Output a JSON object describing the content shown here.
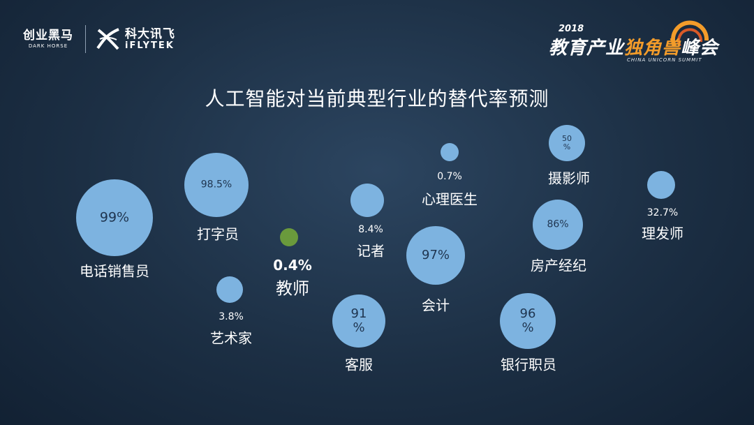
{
  "header": {
    "logo_left_cn": "创业黑马",
    "logo_left_en": "DARK HORSE",
    "logo_mid_cn": "科大讯飞",
    "logo_mid_en": "iFLYTEK",
    "logo_right_year": "2018",
    "logo_right_main_a": "教育产业",
    "logo_right_main_b": "独角兽",
    "logo_right_main_c": "峰会",
    "logo_right_sub": "CHINA UNICORN SUMMIT"
  },
  "colors": {
    "bubble": "#7db3e0",
    "highlight": "#6a9a3c",
    "text": "#ffffff",
    "bubble_text": "#1f3550"
  },
  "chart_data": {
    "type": "scatter",
    "title": "人工智能对当前典型行业的替代率预测",
    "points": [
      {
        "name": "电话销售员",
        "value": "99%",
        "rate": 99,
        "label_pos": "inside"
      },
      {
        "name": "打字员",
        "value": "98.5%",
        "rate": 98.5,
        "label_pos": "inside"
      },
      {
        "name": "艺术家",
        "value": "3.8%",
        "rate": 3.8,
        "label_pos": "below"
      },
      {
        "name": "教师",
        "value": "0.4%",
        "rate": 0.4,
        "label_pos": "below",
        "highlight": true
      },
      {
        "name": "客服",
        "value": "91\n%",
        "rate": 91,
        "label_pos": "inside"
      },
      {
        "name": "记者",
        "value": "8.4%",
        "rate": 8.4,
        "label_pos": "below"
      },
      {
        "name": "会计",
        "value": "97%",
        "rate": 97,
        "label_pos": "inside"
      },
      {
        "name": "心理医生",
        "value": "0.7%",
        "rate": 0.7,
        "label_pos": "below"
      },
      {
        "name": "摄影师",
        "value": "50\n%",
        "rate": 50,
        "label_pos": "inside"
      },
      {
        "name": "房产经纪",
        "value": "86%",
        "rate": 86,
        "label_pos": "inside"
      },
      {
        "name": "银行职员",
        "value": "96\n%",
        "rate": 96,
        "label_pos": "inside"
      },
      {
        "name": "理发师",
        "value": "32.7%",
        "rate": 32.7,
        "label_pos": "below"
      }
    ]
  }
}
